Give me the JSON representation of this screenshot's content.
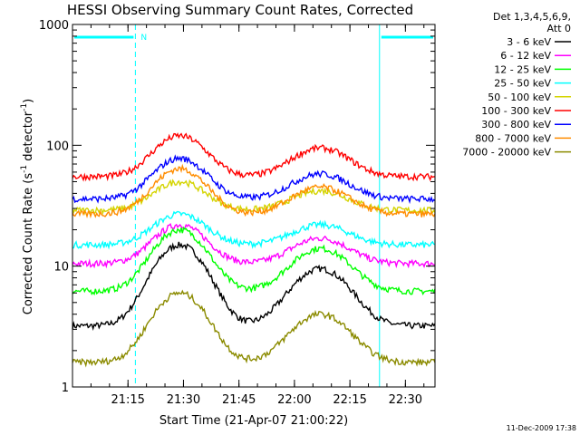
{
  "chart_data": {
    "type": "line",
    "title": "HESSI Observing Summary Count Rates, Corrected",
    "xlabel": "Start Time (21-Apr-07 21:00:22)",
    "ylabel_main": "Corrected Count Rate (s",
    "ylabel_sup1": "-1",
    "ylabel_mid": " detector",
    "ylabel_sup2": "-1",
    "ylabel_end": ")",
    "footer": "11-Dec-2009 17:38",
    "flag_label": "N",
    "x_range_min": [
      0,
      98
    ],
    "y_scale": "log",
    "ylim": [
      1,
      1000
    ],
    "x_ticks": [
      {
        "v": 15,
        "label": "21:15"
      },
      {
        "v": 30,
        "label": "21:30"
      },
      {
        "v": 45,
        "label": "21:45"
      },
      {
        "v": 60,
        "label": "22:00"
      },
      {
        "v": 75,
        "label": "22:15"
      },
      {
        "v": 90,
        "label": "22:30"
      }
    ],
    "y_major_ticks": [
      {
        "v": 1,
        "label": "1"
      },
      {
        "v": 10,
        "label": "10"
      },
      {
        "v": 100,
        "label": "100"
      },
      {
        "v": 1000,
        "label": "1000"
      }
    ],
    "legend_header": [
      "Det 1,3,4,5,6,9,",
      "Att 0"
    ],
    "night_shading_min": [
      [
        0,
        17
      ],
      [
        83,
        98
      ]
    ],
    "series": [
      {
        "name": "3 - 6 keV",
        "color": "#000000",
        "base": 3.2,
        "peak1": 15,
        "peak2": 9.5
      },
      {
        "name": "6 - 12 keV",
        "color": "#ff00ff",
        "base": 10.5,
        "peak1": 22,
        "peak2": 17
      },
      {
        "name": "12 - 25 keV",
        "color": "#00ff00",
        "base": 6.2,
        "peak1": 20,
        "peak2": 14
      },
      {
        "name": "25 - 50 keV",
        "color": "#00ffff",
        "base": 15,
        "peak1": 27,
        "peak2": 22
      },
      {
        "name": "50 - 100 keV",
        "color": "#d4d400",
        "base": 29,
        "peak1": 50,
        "peak2": 42
      },
      {
        "name": "100 - 300 keV",
        "color": "#ff0000",
        "base": 55,
        "peak1": 120,
        "peak2": 95
      },
      {
        "name": "300 - 800 keV",
        "color": "#0000ff",
        "base": 36,
        "peak1": 78,
        "peak2": 58
      },
      {
        "name": "800 - 7000 keV",
        "color": "#ff8c00",
        "base": 27,
        "peak1": 64,
        "peak2": 45
      },
      {
        "name": "7000 - 20000 keV",
        "color": "#8b8b00",
        "base": 1.6,
        "peak1": 6,
        "peak2": 4
      }
    ]
  }
}
